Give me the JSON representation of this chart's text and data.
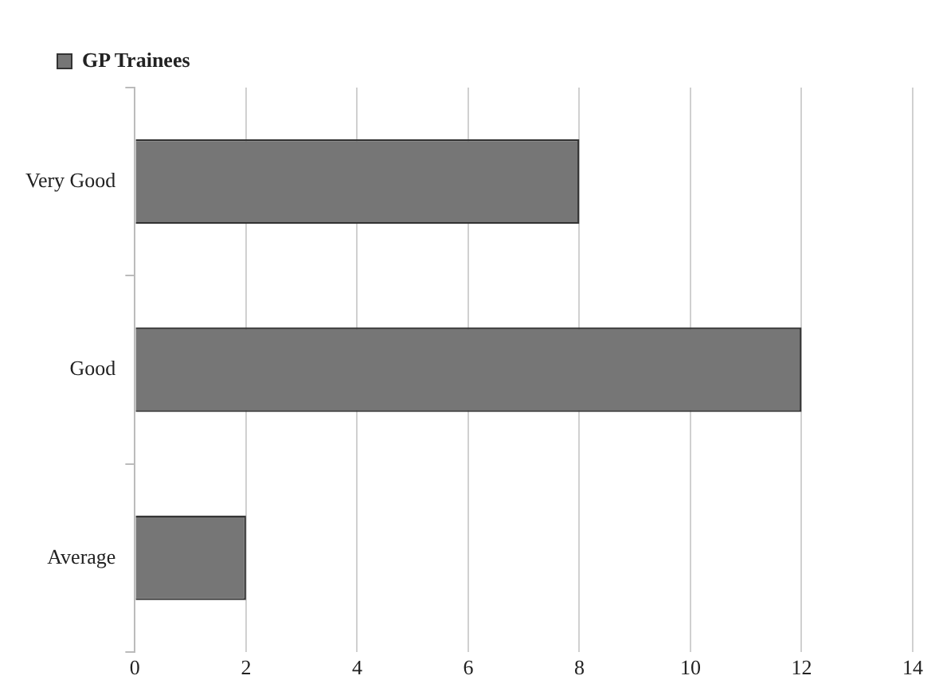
{
  "chart_data": {
    "type": "bar",
    "orientation": "horizontal",
    "categories": [
      "Very Good",
      "Good",
      "Average"
    ],
    "series": [
      {
        "name": "GP Trainees",
        "color": "#767676",
        "values": [
          8,
          12,
          2
        ]
      }
    ],
    "xlim": [
      0,
      14
    ],
    "xticks": [
      0,
      2,
      4,
      6,
      8,
      10,
      12,
      14
    ],
    "grid": "x",
    "legend": "top left"
  }
}
